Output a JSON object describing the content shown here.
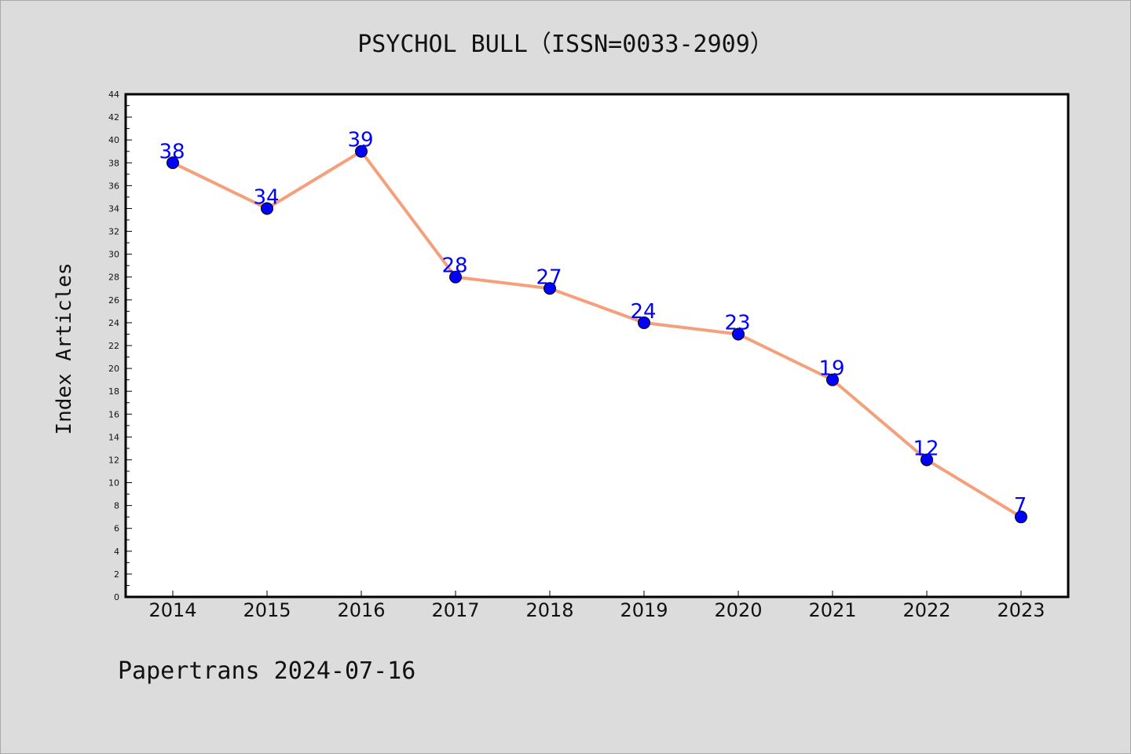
{
  "chart_data": {
    "type": "line",
    "title": "PSYCHOL BULL（ISSN=0033-2909）",
    "ylabel": "Index Articles",
    "xlabel": "",
    "categories": [
      "2014",
      "2015",
      "2016",
      "2017",
      "2018",
      "2019",
      "2020",
      "2021",
      "2022",
      "2023"
    ],
    "values": [
      38,
      34,
      39,
      28,
      27,
      24,
      23,
      19,
      12,
      7
    ],
    "ylim": [
      0,
      44
    ],
    "y_ticks": [
      0,
      2,
      4,
      6,
      8,
      10,
      12,
      14,
      16,
      18,
      20,
      22,
      24,
      26,
      28,
      30,
      32,
      34,
      36,
      38,
      40,
      42,
      44
    ],
    "grid": false,
    "line_color": "#f4a07c",
    "marker_color": "#0000ff",
    "label_color": "#0000ff",
    "footer": "Papertrans 2024-07-16"
  }
}
